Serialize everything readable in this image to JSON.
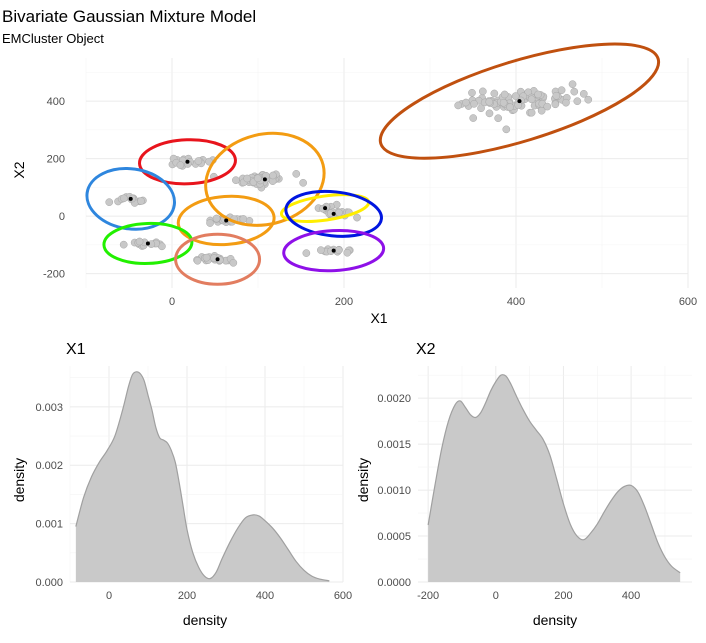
{
  "title": "Bivariate Gaussian Mixture Model",
  "subtitle": "EMCluster Object",
  "colors": {
    "points_fill": "#c8c8c8",
    "points_stroke": "#a6a6a6",
    "density_fill": "#c9c9c9",
    "density_line": "#a0a0a0"
  },
  "chart_data": [
    {
      "type": "scatter",
      "title": "Bivariate Gaussian Mixture Model",
      "subtitle": "EMCluster Object",
      "xlabel": "X1",
      "ylabel": "X2",
      "xlim": [
        -100,
        600
      ],
      "ylim": [
        -250,
        550
      ],
      "xticks": [
        0,
        200,
        400,
        600
      ],
      "yticks": [
        -200,
        0,
        200,
        400
      ],
      "grid": true,
      "clusters": [
        {
          "color": "#e8141c",
          "center": [
            18,
            189
          ],
          "n": 22,
          "spread": [
            26,
            16
          ],
          "rx": 48,
          "ry": 22,
          "angle": 2
        },
        {
          "color": "#f39c12",
          "center": [
            108,
            128
          ],
          "n": 44,
          "spread": [
            34,
            22
          ],
          "rx": 60,
          "ry": 45,
          "angle": 14
        },
        {
          "color": "#2e86de",
          "center": [
            -48,
            60
          ],
          "n": 14,
          "spread": [
            20,
            14
          ],
          "rx": 44,
          "ry": 30,
          "angle": -8
        },
        {
          "color": "#f39c12",
          "center": [
            63,
            -15
          ],
          "n": 22,
          "spread": [
            22,
            12
          ],
          "rx": 48,
          "ry": 24,
          "angle": 4
        },
        {
          "color": "#ffee00",
          "center": [
            178,
            28
          ],
          "n": 8,
          "spread": [
            18,
            6
          ],
          "rx": 44,
          "ry": 12,
          "angle": 8
        },
        {
          "color": "#0016e0",
          "center": [
            188,
            8
          ],
          "n": 18,
          "spread": [
            22,
            10
          ],
          "rx": 48,
          "ry": 22,
          "angle": -6
        },
        {
          "color": "#22f000",
          "center": [
            -28,
            -95
          ],
          "n": 14,
          "spread": [
            22,
            10
          ],
          "rx": 44,
          "ry": 20,
          "angle": 2
        },
        {
          "color": "#e27d60",
          "center": [
            53,
            -150
          ],
          "n": 20,
          "spread": [
            22,
            12
          ],
          "rx": 42,
          "ry": 25,
          "angle": 0
        },
        {
          "color": "#8e10e8",
          "center": [
            188,
            -120
          ],
          "n": 14,
          "spread": [
            22,
            8
          ],
          "rx": 50,
          "ry": 20,
          "angle": 3
        },
        {
          "color": "#c0500f",
          "center": [
            404,
            400
          ],
          "n": 90,
          "spread": [
            70,
            38
          ],
          "rx": 145,
          "ry": 40,
          "angle": 17
        }
      ]
    },
    {
      "type": "area",
      "title": "X1",
      "xlabel": "density",
      "ylabel": "density",
      "xlim": [
        -100,
        600
      ],
      "ylim": [
        0,
        0.0037
      ],
      "xticks": [
        0,
        200,
        400,
        600
      ],
      "yticks": [
        0.0,
        0.001,
        0.002,
        0.003
      ],
      "ytick_labels": [
        "0.000",
        "0.001",
        "0.002",
        "0.003"
      ],
      "x": [
        -85,
        -65,
        -45,
        -25,
        -5,
        15,
        35,
        50,
        60,
        70,
        80,
        90,
        100,
        110,
        120,
        130,
        140,
        150,
        160,
        170,
        180,
        190,
        200,
        215,
        230,
        245,
        260,
        275,
        290,
        310,
        330,
        350,
        370,
        385,
        400,
        420,
        440,
        460,
        480,
        500,
        520,
        540,
        565
      ],
      "y": [
        0.00095,
        0.00145,
        0.0018,
        0.00205,
        0.00225,
        0.0025,
        0.00295,
        0.00335,
        0.00355,
        0.0036,
        0.00357,
        0.00345,
        0.0032,
        0.00295,
        0.00265,
        0.00247,
        0.00243,
        0.00238,
        0.00225,
        0.00205,
        0.0017,
        0.0013,
        0.0009,
        0.0005,
        0.00025,
        0.0001,
        6e-05,
        0.00017,
        0.0004,
        0.00068,
        0.00092,
        0.0011,
        0.00115,
        0.00113,
        0.00105,
        0.00092,
        0.00075,
        0.00055,
        0.00035,
        0.0002,
        0.0001,
        5e-05,
        2e-05
      ]
    },
    {
      "type": "area",
      "title": "X2",
      "xlabel": "density",
      "ylabel": "density",
      "xlim": [
        -230,
        580
      ],
      "ylim": [
        0,
        0.00235
      ],
      "xticks": [
        -200,
        0,
        200,
        400
      ],
      "yticks": [
        0.0,
        0.0005,
        0.001,
        0.0015,
        0.002
      ],
      "ytick_labels": [
        "0.0000",
        "0.0005",
        "0.0010",
        "0.0015",
        "0.0020"
      ],
      "x": [
        -200,
        -180,
        -160,
        -140,
        -120,
        -105,
        -90,
        -75,
        -60,
        -45,
        -30,
        -15,
        0,
        15,
        30,
        45,
        60,
        80,
        100,
        120,
        140,
        160,
        180,
        200,
        220,
        240,
        260,
        280,
        300,
        320,
        340,
        360,
        380,
        400,
        420,
        440,
        460,
        480,
        500,
        520,
        545
      ],
      "y": [
        0.00062,
        0.00105,
        0.00145,
        0.00175,
        0.00193,
        0.00197,
        0.0019,
        0.00182,
        0.00179,
        0.00184,
        0.00195,
        0.00208,
        0.00218,
        0.00225,
        0.00224,
        0.00215,
        0.00203,
        0.00188,
        0.00175,
        0.00165,
        0.00155,
        0.00138,
        0.00112,
        0.00085,
        0.00063,
        0.0005,
        0.00046,
        0.00053,
        0.00063,
        0.00076,
        0.00088,
        0.00098,
        0.00104,
        0.00105,
        0.00098,
        0.00082,
        0.00062,
        0.00042,
        0.00027,
        0.00017,
        0.0001
      ]
    }
  ]
}
